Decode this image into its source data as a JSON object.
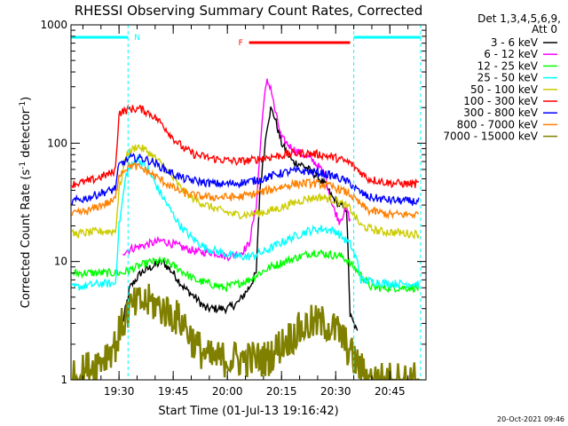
{
  "chart_data": {
    "type": "line",
    "title": "RHESSI Observing Summary Count Rates, Corrected",
    "xlabel": "Start Time (01-Jul-13 19:16:42)",
    "ylabel_main": "Corrected Count Rate (s",
    "ylabel_sup1": "-1",
    "ylabel_mid": " detector",
    "ylabel_sup2": "-1",
    "ylabel_end": ")",
    "y_scale": "log",
    "ylim": [
      1,
      1000
    ],
    "xlim": [
      "19:16:42",
      "20:55:00"
    ],
    "xtick_labels": [
      "19:30",
      "19:45",
      "20:00",
      "20:15",
      "20:30",
      "20:45"
    ],
    "ytick_labels": [
      "1",
      "10",
      "100",
      "1000"
    ],
    "legend_title": "Det 1,3,4,5,6,9,",
    "legend_subtitle": "Att 0",
    "footer": "20-Oct-2021 09:46",
    "flags": {
      "night_label": "N",
      "flare_label": "F",
      "night_color": "#00ffff",
      "flare_color": "#ff0000",
      "day_intervals": [
        [
          "19:16:42",
          "19:32:30"
        ],
        [
          "20:35:00",
          "20:53:30"
        ]
      ],
      "flare_interval": [
        "20:06:00",
        "20:34:00"
      ],
      "night_boundaries": [
        "19:32:30",
        "20:35:00",
        "20:53:30"
      ]
    },
    "series": [
      {
        "name": "3 - 6 keV",
        "color": "#000000",
        "points": [
          [
            "19:31",
            "3"
          ],
          [
            "19:33",
            "6"
          ],
          [
            "19:36",
            "8"
          ],
          [
            "19:39",
            "9"
          ],
          [
            "19:42",
            "10"
          ],
          [
            "19:45",
            "8"
          ],
          [
            "19:48",
            "6"
          ],
          [
            "19:51",
            "5"
          ],
          [
            "19:54",
            "4"
          ],
          [
            "19:57",
            "4"
          ],
          [
            "20:00",
            "4"
          ],
          [
            "20:03",
            "4.5"
          ],
          [
            "20:06",
            "6"
          ],
          [
            "20:08",
            "8"
          ],
          [
            "20:09",
            "40"
          ],
          [
            "20:11",
            "140"
          ],
          [
            "20:12",
            "195"
          ],
          [
            "20:13",
            "170"
          ],
          [
            "20:15",
            "100"
          ],
          [
            "20:18",
            "70"
          ],
          [
            "20:21",
            "65"
          ],
          [
            "20:24",
            "55"
          ],
          [
            "20:27",
            "45"
          ],
          [
            "20:29",
            "35"
          ],
          [
            "20:31",
            "30"
          ],
          [
            "20:33",
            "28"
          ],
          [
            "20:34",
            "3.5"
          ],
          [
            "20:36",
            "2.5"
          ]
        ]
      },
      {
        "name": "6 - 12 keV",
        "color": "#ff00ff",
        "points": [
          [
            "19:31",
            "12"
          ],
          [
            "19:34",
            "13"
          ],
          [
            "19:38",
            "14"
          ],
          [
            "19:42",
            "15"
          ],
          [
            "19:45",
            "14"
          ],
          [
            "19:48",
            "13"
          ],
          [
            "19:52",
            "12"
          ],
          [
            "19:56",
            "12"
          ],
          [
            "20:00",
            "11"
          ],
          [
            "20:04",
            "12"
          ],
          [
            "20:06",
            "14"
          ],
          [
            "20:08",
            "30"
          ],
          [
            "20:10",
            "220"
          ],
          [
            "20:11",
            "330"
          ],
          [
            "20:12",
            "300"
          ],
          [
            "20:13",
            "200"
          ],
          [
            "20:15",
            "110"
          ],
          [
            "20:18",
            "90"
          ],
          [
            "20:21",
            "80"
          ],
          [
            "20:24",
            "70"
          ],
          [
            "20:27",
            "55"
          ],
          [
            "20:29",
            "30"
          ],
          [
            "20:31",
            "22"
          ],
          [
            "20:33",
            "28"
          ],
          [
            "20:34",
            "22"
          ]
        ]
      },
      {
        "name": "12 - 25 keV",
        "color": "#00ff00",
        "points": [
          [
            "19:17",
            "8"
          ],
          [
            "19:25",
            "8"
          ],
          [
            "19:31",
            "8"
          ],
          [
            "19:35",
            "9"
          ],
          [
            "19:39",
            "10"
          ],
          [
            "19:43",
            "10"
          ],
          [
            "19:47",
            "8.5"
          ],
          [
            "19:51",
            "7"
          ],
          [
            "19:55",
            "6.5"
          ],
          [
            "19:59",
            "6"
          ],
          [
            "20:03",
            "6.5"
          ],
          [
            "20:06",
            "7"
          ],
          [
            "20:09",
            "8"
          ],
          [
            "20:12",
            "9"
          ],
          [
            "20:16",
            "10"
          ],
          [
            "20:20",
            "11"
          ],
          [
            "20:24",
            "12"
          ],
          [
            "20:28",
            "11.5"
          ],
          [
            "20:32",
            "11"
          ],
          [
            "20:35",
            "9"
          ],
          [
            "20:40",
            "6"
          ],
          [
            "20:45",
            "6"
          ],
          [
            "20:50",
            "6"
          ],
          [
            "20:53",
            "6"
          ]
        ]
      },
      {
        "name": "25 - 50 keV",
        "color": "#00ffff",
        "points": [
          [
            "19:17",
            "6"
          ],
          [
            "19:25",
            "6.5"
          ],
          [
            "19:29",
            "6.5"
          ],
          [
            "19:30",
            "20"
          ],
          [
            "19:32",
            "55"
          ],
          [
            "19:35",
            "75"
          ],
          [
            "19:38",
            "60"
          ],
          [
            "19:41",
            "40"
          ],
          [
            "19:44",
            "28"
          ],
          [
            "19:47",
            "20"
          ],
          [
            "19:50",
            "16"
          ],
          [
            "19:54",
            "13"
          ],
          [
            "19:58",
            "12"
          ],
          [
            "20:02",
            "11"
          ],
          [
            "20:06",
            "11"
          ],
          [
            "20:10",
            "12"
          ],
          [
            "20:14",
            "14"
          ],
          [
            "20:18",
            "16"
          ],
          [
            "20:22",
            "18"
          ],
          [
            "20:26",
            "19"
          ],
          [
            "20:30",
            "18"
          ],
          [
            "20:34",
            "14"
          ],
          [
            "20:36",
            "10"
          ],
          [
            "20:37",
            "7"
          ],
          [
            "20:45",
            "6.5"
          ],
          [
            "20:53",
            "6.5"
          ]
        ]
      },
      {
        "name": "50 - 100 keV",
        "color": "#cccc00",
        "points": [
          [
            "19:17",
            "17"
          ],
          [
            "19:25",
            "18"
          ],
          [
            "19:29",
            "18"
          ],
          [
            "19:30",
            "40"
          ],
          [
            "19:32",
            "80"
          ],
          [
            "19:35",
            "95"
          ],
          [
            "19:38",
            "85"
          ],
          [
            "19:41",
            "70"
          ],
          [
            "19:44",
            "55"
          ],
          [
            "19:47",
            "42"
          ],
          [
            "19:50",
            "35"
          ],
          [
            "19:54",
            "30"
          ],
          [
            "19:58",
            "27"
          ],
          [
            "20:02",
            "25"
          ],
          [
            "20:06",
            "25"
          ],
          [
            "20:10",
            "26"
          ],
          [
            "20:14",
            "28"
          ],
          [
            "20:18",
            "31"
          ],
          [
            "20:22",
            "34"
          ],
          [
            "20:26",
            "35"
          ],
          [
            "20:30",
            "33"
          ],
          [
            "20:34",
            "28"
          ],
          [
            "20:37",
            "20"
          ],
          [
            "20:42",
            "18"
          ],
          [
            "20:53",
            "17"
          ]
        ]
      },
      {
        "name": "100 - 300 keV",
        "color": "#ff0000",
        "points": [
          [
            "19:17",
            "45"
          ],
          [
            "19:22",
            "48"
          ],
          [
            "19:25",
            "52"
          ],
          [
            "19:28",
            "56"
          ],
          [
            "19:29",
            "60"
          ],
          [
            "19:30",
            "180"
          ],
          [
            "19:33",
            "195"
          ],
          [
            "19:36",
            "195"
          ],
          [
            "19:39",
            "175"
          ],
          [
            "19:42",
            "145"
          ],
          [
            "19:45",
            "110"
          ],
          [
            "19:48",
            "90"
          ],
          [
            "19:51",
            "80"
          ],
          [
            "19:55",
            "75"
          ],
          [
            "19:59",
            "72"
          ],
          [
            "20:03",
            "70"
          ],
          [
            "20:07",
            "72"
          ],
          [
            "20:10",
            "75"
          ],
          [
            "20:14",
            "78"
          ],
          [
            "20:18",
            "82"
          ],
          [
            "20:22",
            "82"
          ],
          [
            "20:26",
            "80"
          ],
          [
            "20:30",
            "75"
          ],
          [
            "20:34",
            "68"
          ],
          [
            "20:36",
            "60"
          ],
          [
            "20:39",
            "50"
          ],
          [
            "20:45",
            "46"
          ],
          [
            "20:53",
            "45"
          ]
        ]
      },
      {
        "name": "300 - 800 keV",
        "color": "#0000ff",
        "points": [
          [
            "19:17",
            "32"
          ],
          [
            "19:22",
            "35"
          ],
          [
            "19:25",
            "38"
          ],
          [
            "19:28",
            "40"
          ],
          [
            "19:29",
            "42"
          ],
          [
            "19:30",
            "65"
          ],
          [
            "19:33",
            "75"
          ],
          [
            "19:36",
            "75"
          ],
          [
            "19:39",
            "70"
          ],
          [
            "19:42",
            "62"
          ],
          [
            "19:45",
            "55"
          ],
          [
            "19:48",
            "50"
          ],
          [
            "19:51",
            "48"
          ],
          [
            "19:55",
            "46"
          ],
          [
            "19:59",
            "45"
          ],
          [
            "20:03",
            "46"
          ],
          [
            "20:07",
            "48"
          ],
          [
            "20:10",
            "50"
          ],
          [
            "20:14",
            "55"
          ],
          [
            "20:18",
            "58"
          ],
          [
            "20:22",
            "58"
          ],
          [
            "20:26",
            "56"
          ],
          [
            "20:30",
            "52"
          ],
          [
            "20:34",
            "46"
          ],
          [
            "20:36",
            "40"
          ],
          [
            "20:39",
            "35"
          ],
          [
            "20:45",
            "33"
          ],
          [
            "20:53",
            "32"
          ]
        ]
      },
      {
        "name": "800 - 7000 keV",
        "color": "#ff8000",
        "points": [
          [
            "19:17",
            "25"
          ],
          [
            "19:22",
            "27"
          ],
          [
            "19:25",
            "30"
          ],
          [
            "19:28",
            "32"
          ],
          [
            "19:29",
            "34"
          ],
          [
            "19:30",
            "55"
          ],
          [
            "19:33",
            "65"
          ],
          [
            "19:36",
            "62"
          ],
          [
            "19:39",
            "55"
          ],
          [
            "19:42",
            "48"
          ],
          [
            "19:45",
            "42"
          ],
          [
            "19:48",
            "38"
          ],
          [
            "19:51",
            "36"
          ],
          [
            "19:55",
            "35"
          ],
          [
            "19:59",
            "35"
          ],
          [
            "20:03",
            "35"
          ],
          [
            "20:07",
            "37"
          ],
          [
            "20:10",
            "39"
          ],
          [
            "20:14",
            "42"
          ],
          [
            "20:18",
            "45"
          ],
          [
            "20:22",
            "46"
          ],
          [
            "20:26",
            "45"
          ],
          [
            "20:30",
            "42"
          ],
          [
            "20:34",
            "37"
          ],
          [
            "20:36",
            "32"
          ],
          [
            "20:39",
            "27"
          ],
          [
            "20:45",
            "25"
          ],
          [
            "20:53",
            "25"
          ]
        ]
      },
      {
        "name": "7000 - 15000 keV",
        "color": "#808000",
        "points": [
          [
            "19:17",
            "1"
          ],
          [
            "19:25",
            "1.5"
          ],
          [
            "19:29",
            "2"
          ],
          [
            "19:31",
            "3"
          ],
          [
            "19:33",
            "4"
          ],
          [
            "19:36",
            "4.5"
          ],
          [
            "19:39",
            "4.5"
          ],
          [
            "19:42",
            "4"
          ],
          [
            "19:45",
            "3.5"
          ],
          [
            "19:48",
            "3"
          ],
          [
            "19:51",
            "2"
          ],
          [
            "19:55",
            "1.5"
          ],
          [
            "19:59",
            "1.5"
          ],
          [
            "20:03",
            "1.5"
          ],
          [
            "20:07",
            "1.5"
          ],
          [
            "20:11",
            "1.5"
          ],
          [
            "20:15",
            "2"
          ],
          [
            "20:19",
            "2.5"
          ],
          [
            "20:23",
            "3"
          ],
          [
            "20:27",
            "3"
          ],
          [
            "20:31",
            "2.5"
          ],
          [
            "20:35",
            "1.5"
          ],
          [
            "20:39",
            "1"
          ],
          [
            "20:45",
            "1"
          ],
          [
            "20:53",
            "1"
          ]
        ]
      }
    ]
  }
}
